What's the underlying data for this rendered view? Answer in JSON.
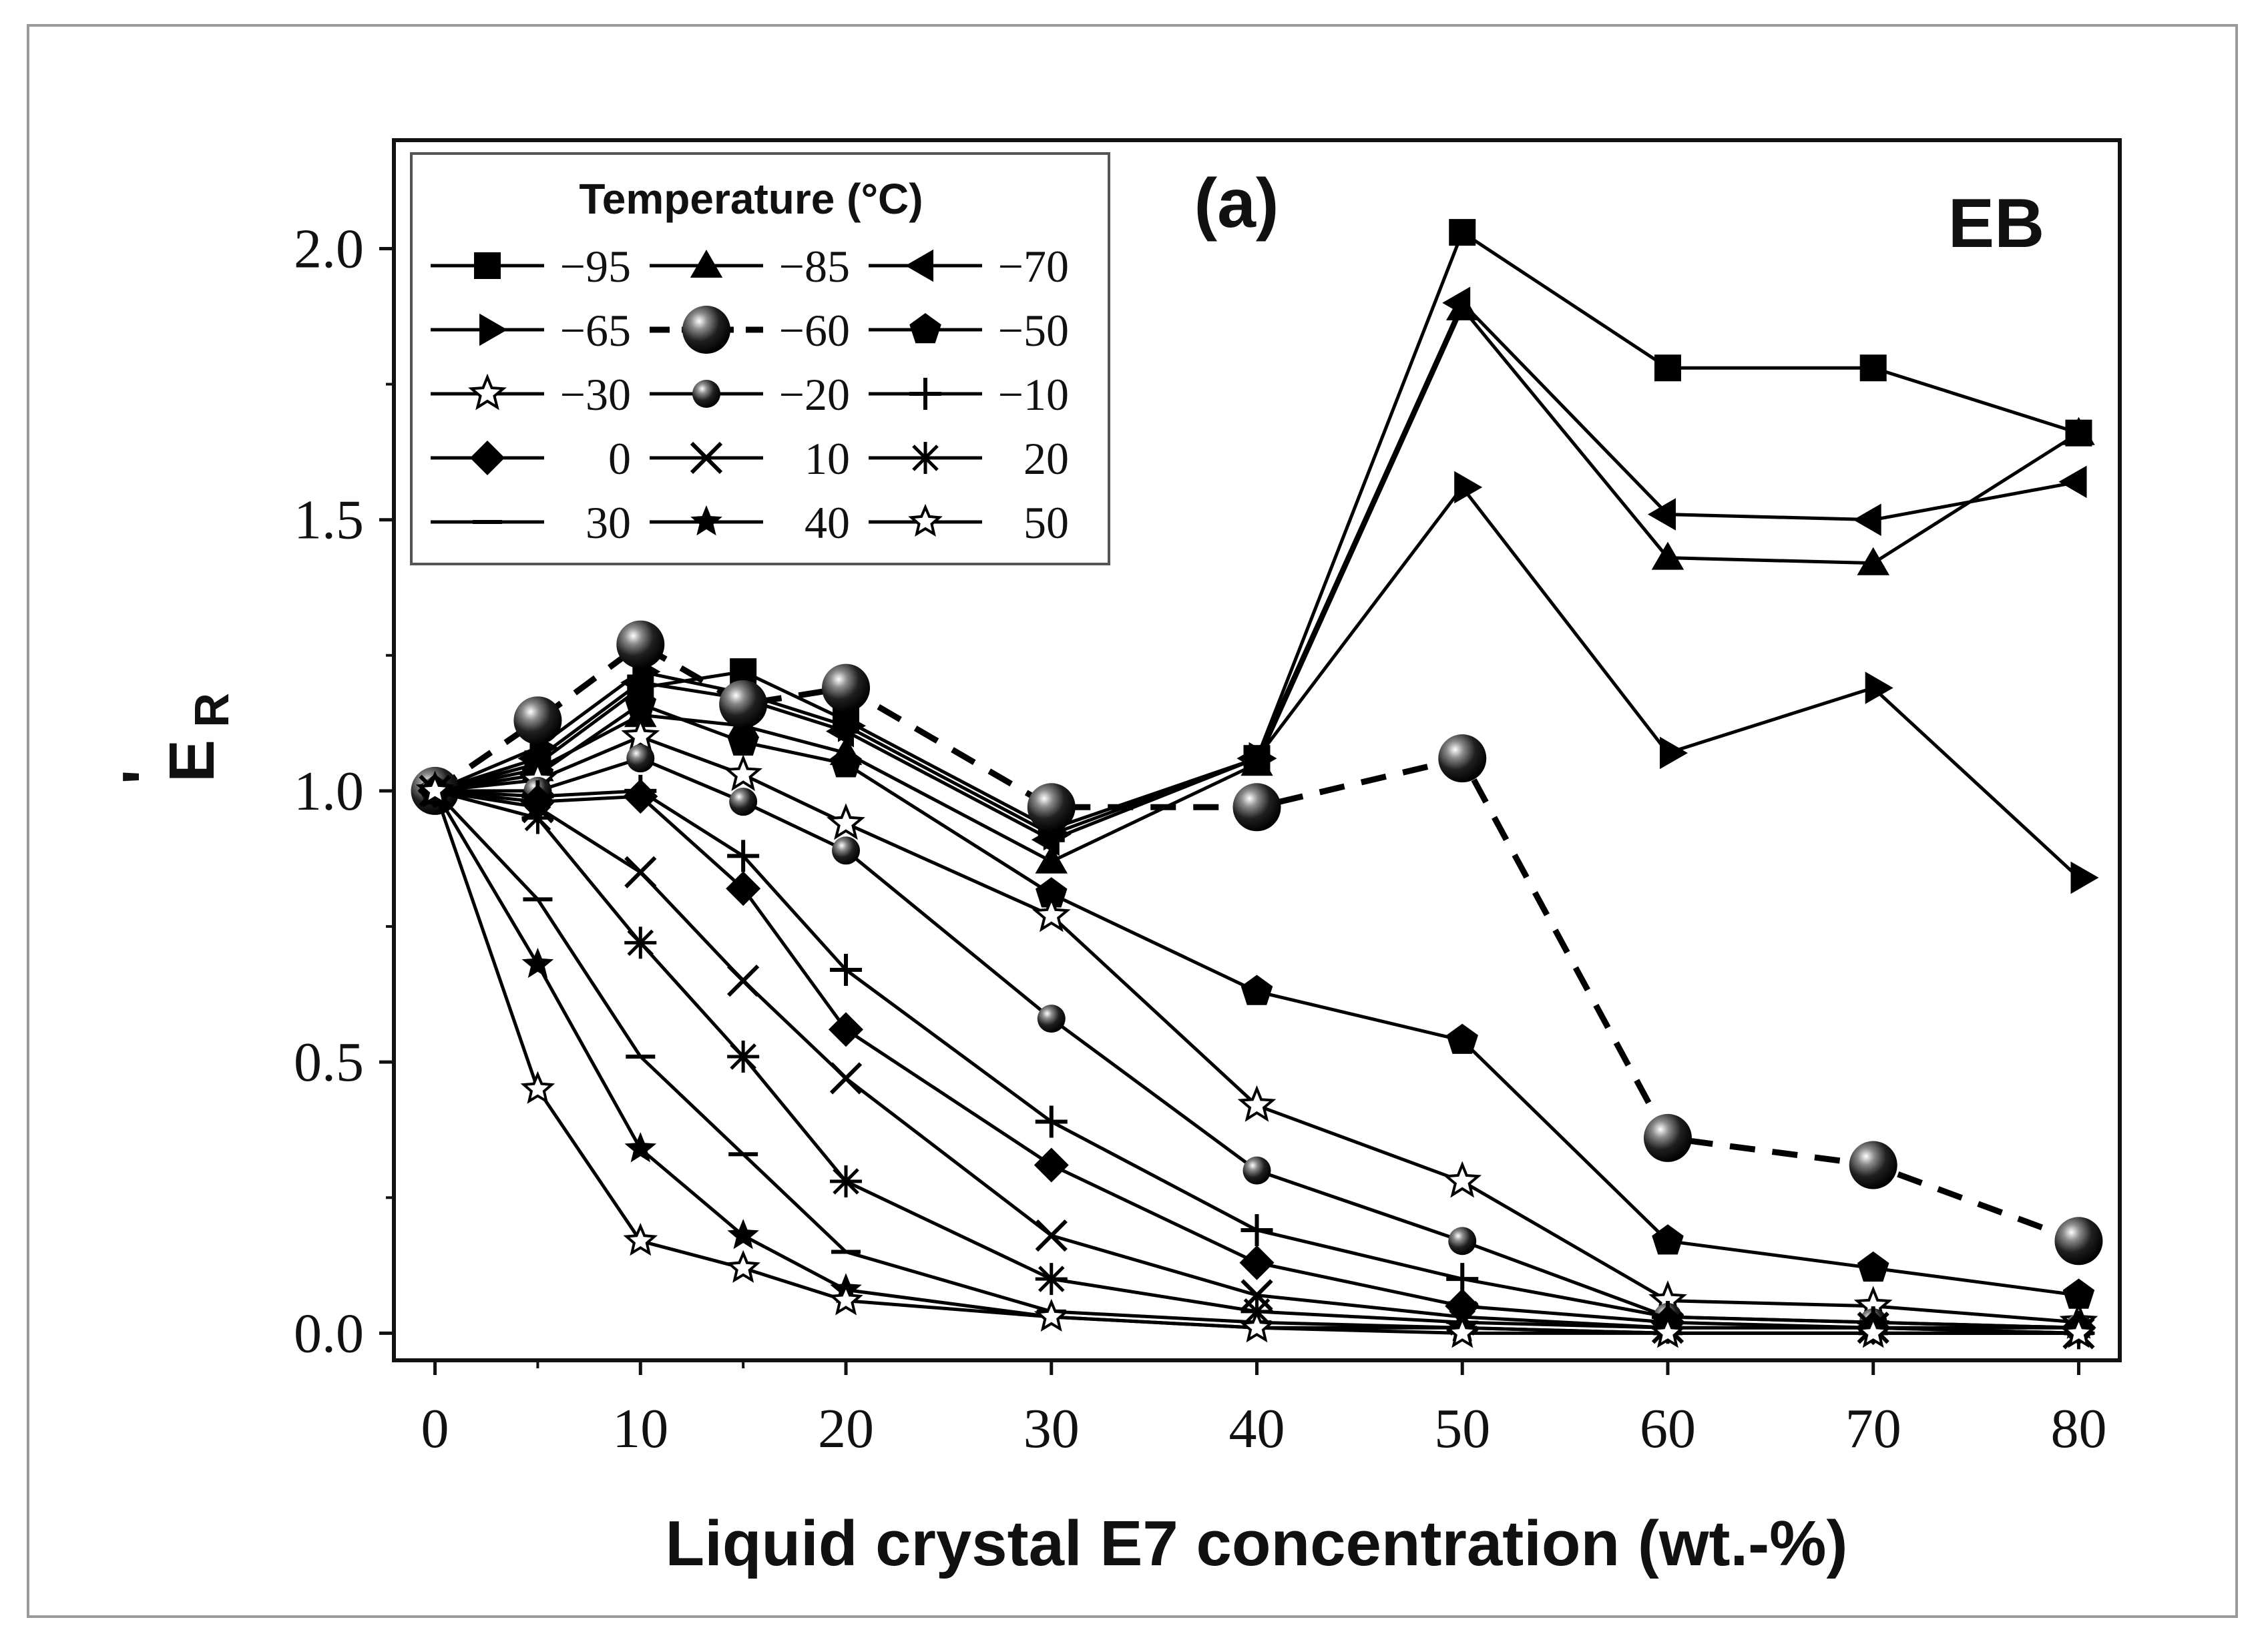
{
  "chart_data": {
    "type": "line",
    "panel_label": "(a)",
    "corner_label": "EB",
    "xlabel": "Liquid crystal E7 concentration (wt.-%)",
    "ylabel": "E'R",
    "ylabel_main": "E",
    "ylabel_prime": "'",
    "ylabel_sub": "R",
    "xlim": [
      -2,
      82
    ],
    "ylim": [
      -0.05,
      2.2
    ],
    "xticks": [
      "0",
      "10",
      "20",
      "30",
      "40",
      "50",
      "60",
      "70",
      "80"
    ],
    "yticks": [
      "0.0",
      "0.5",
      "1.0",
      "1.5",
      "2.0"
    ],
    "legend_title": "Temperature (°C)",
    "x": [
      0,
      5,
      10,
      15,
      20,
      30,
      40,
      50,
      60,
      70,
      80
    ],
    "series": [
      {
        "name": "−95",
        "marker": "square",
        "values": [
          1.0,
          1.05,
          1.19,
          1.22,
          1.13,
          0.93,
          1.06,
          2.03,
          1.78,
          1.78,
          1.66
        ]
      },
      {
        "name": "−85",
        "marker": "triangle-up",
        "values": [
          1.0,
          1.04,
          1.14,
          1.12,
          1.07,
          0.87,
          1.05,
          1.89,
          1.43,
          1.42,
          1.66
        ]
      },
      {
        "name": "−70",
        "marker": "triangle-left",
        "values": [
          1.0,
          1.06,
          1.2,
          1.17,
          1.11,
          0.91,
          1.06,
          1.9,
          1.51,
          1.5,
          1.57
        ]
      },
      {
        "name": "−65",
        "marker": "triangle-right",
        "values": [
          1.0,
          1.08,
          1.22,
          1.18,
          1.12,
          0.92,
          1.06,
          1.56,
          1.07,
          1.19,
          0.84
        ]
      },
      {
        "name": "−60",
        "marker": "sphere-large",
        "dashed": true,
        "values": [
          1.0,
          1.13,
          1.27,
          1.16,
          1.19,
          0.97,
          0.97,
          1.06,
          0.36,
          0.31,
          0.17
        ]
      },
      {
        "name": "−50",
        "marker": "pentagon",
        "values": [
          1.0,
          1.03,
          1.16,
          1.09,
          1.05,
          0.81,
          0.63,
          0.54,
          0.17,
          0.12,
          0.07
        ]
      },
      {
        "name": "−30",
        "marker": "star-open",
        "values": [
          1.0,
          1.02,
          1.1,
          1.03,
          0.94,
          0.77,
          0.42,
          0.28,
          0.06,
          0.05,
          0.02
        ]
      },
      {
        "name": "−20",
        "marker": "sphere-small",
        "values": [
          1.0,
          1.0,
          1.06,
          0.98,
          0.89,
          0.58,
          0.3,
          0.17,
          0.03,
          0.02,
          0.01
        ]
      },
      {
        "name": "−10",
        "marker": "plus",
        "values": [
          1.0,
          0.99,
          1.0,
          0.88,
          0.67,
          0.39,
          0.19,
          0.1,
          0.03,
          0.02,
          0.01
        ]
      },
      {
        "name": "0",
        "marker": "diamond",
        "values": [
          1.0,
          0.98,
          0.99,
          0.82,
          0.56,
          0.31,
          0.13,
          0.05,
          0.02,
          0.01,
          0.01
        ]
      },
      {
        "name": "10",
        "marker": "cross",
        "values": [
          1.0,
          0.97,
          0.85,
          0.65,
          0.47,
          0.18,
          0.07,
          0.03,
          0.01,
          0.01,
          0.0
        ]
      },
      {
        "name": "20",
        "marker": "asterisk",
        "values": [
          1.0,
          0.95,
          0.72,
          0.51,
          0.28,
          0.1,
          0.04,
          0.02,
          0.01,
          0.01,
          0.0
        ]
      },
      {
        "name": "30",
        "marker": "dash",
        "values": [
          1.0,
          0.8,
          0.51,
          0.33,
          0.15,
          0.04,
          0.02,
          0.01,
          0.0,
          0.0,
          0.0
        ]
      },
      {
        "name": "40",
        "marker": "star-filled",
        "values": [
          1.0,
          0.68,
          0.34,
          0.18,
          0.08,
          0.03,
          0.01,
          0.01,
          0.0,
          0.0,
          0.0
        ]
      },
      {
        "name": "50",
        "marker": "star-open-small",
        "values": [
          1.0,
          0.45,
          0.17,
          0.12,
          0.06,
          0.03,
          0.01,
          0.0,
          0.0,
          0.0,
          0.0
        ]
      }
    ]
  }
}
